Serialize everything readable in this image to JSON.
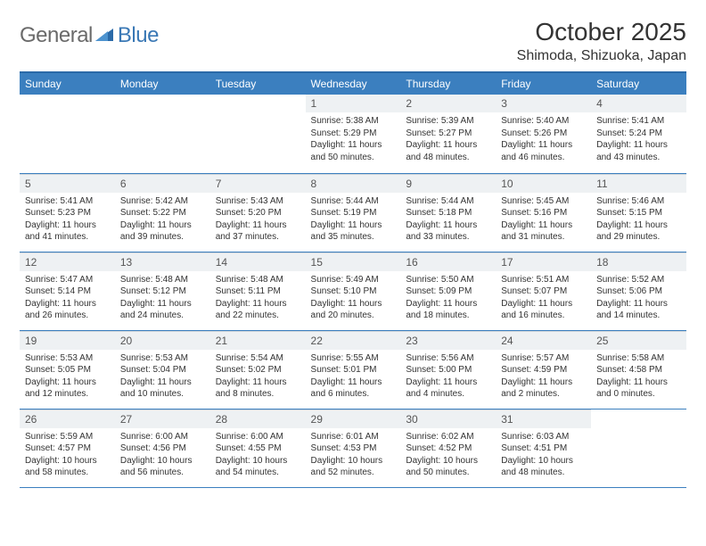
{
  "header": {
    "logo_general": "General",
    "logo_blue": "Blue",
    "month_title": "October 2025",
    "location": "Shimoda, Shizuoka, Japan"
  },
  "colors": {
    "header_bg": "#3b7fbf",
    "header_border": "#2b6aa8",
    "daynum_bg": "#eef1f3",
    "row_border": "#3b7fbf",
    "logo_gray": "#6a6a6a",
    "logo_blue": "#3a78b5"
  },
  "day_labels": [
    "Sunday",
    "Monday",
    "Tuesday",
    "Wednesday",
    "Thursday",
    "Friday",
    "Saturday"
  ],
  "weeks": [
    [
      {
        "empty": true
      },
      {
        "empty": true
      },
      {
        "empty": true
      },
      {
        "num": "1",
        "sunrise": "Sunrise: 5:38 AM",
        "sunset": "Sunset: 5:29 PM",
        "day1": "Daylight: 11 hours",
        "day2": "and 50 minutes."
      },
      {
        "num": "2",
        "sunrise": "Sunrise: 5:39 AM",
        "sunset": "Sunset: 5:27 PM",
        "day1": "Daylight: 11 hours",
        "day2": "and 48 minutes."
      },
      {
        "num": "3",
        "sunrise": "Sunrise: 5:40 AM",
        "sunset": "Sunset: 5:26 PM",
        "day1": "Daylight: 11 hours",
        "day2": "and 46 minutes."
      },
      {
        "num": "4",
        "sunrise": "Sunrise: 5:41 AM",
        "sunset": "Sunset: 5:24 PM",
        "day1": "Daylight: 11 hours",
        "day2": "and 43 minutes."
      }
    ],
    [
      {
        "num": "5",
        "sunrise": "Sunrise: 5:41 AM",
        "sunset": "Sunset: 5:23 PM",
        "day1": "Daylight: 11 hours",
        "day2": "and 41 minutes."
      },
      {
        "num": "6",
        "sunrise": "Sunrise: 5:42 AM",
        "sunset": "Sunset: 5:22 PM",
        "day1": "Daylight: 11 hours",
        "day2": "and 39 minutes."
      },
      {
        "num": "7",
        "sunrise": "Sunrise: 5:43 AM",
        "sunset": "Sunset: 5:20 PM",
        "day1": "Daylight: 11 hours",
        "day2": "and 37 minutes."
      },
      {
        "num": "8",
        "sunrise": "Sunrise: 5:44 AM",
        "sunset": "Sunset: 5:19 PM",
        "day1": "Daylight: 11 hours",
        "day2": "and 35 minutes."
      },
      {
        "num": "9",
        "sunrise": "Sunrise: 5:44 AM",
        "sunset": "Sunset: 5:18 PM",
        "day1": "Daylight: 11 hours",
        "day2": "and 33 minutes."
      },
      {
        "num": "10",
        "sunrise": "Sunrise: 5:45 AM",
        "sunset": "Sunset: 5:16 PM",
        "day1": "Daylight: 11 hours",
        "day2": "and 31 minutes."
      },
      {
        "num": "11",
        "sunrise": "Sunrise: 5:46 AM",
        "sunset": "Sunset: 5:15 PM",
        "day1": "Daylight: 11 hours",
        "day2": "and 29 minutes."
      }
    ],
    [
      {
        "num": "12",
        "sunrise": "Sunrise: 5:47 AM",
        "sunset": "Sunset: 5:14 PM",
        "day1": "Daylight: 11 hours",
        "day2": "and 26 minutes."
      },
      {
        "num": "13",
        "sunrise": "Sunrise: 5:48 AM",
        "sunset": "Sunset: 5:12 PM",
        "day1": "Daylight: 11 hours",
        "day2": "and 24 minutes."
      },
      {
        "num": "14",
        "sunrise": "Sunrise: 5:48 AM",
        "sunset": "Sunset: 5:11 PM",
        "day1": "Daylight: 11 hours",
        "day2": "and 22 minutes."
      },
      {
        "num": "15",
        "sunrise": "Sunrise: 5:49 AM",
        "sunset": "Sunset: 5:10 PM",
        "day1": "Daylight: 11 hours",
        "day2": "and 20 minutes."
      },
      {
        "num": "16",
        "sunrise": "Sunrise: 5:50 AM",
        "sunset": "Sunset: 5:09 PM",
        "day1": "Daylight: 11 hours",
        "day2": "and 18 minutes."
      },
      {
        "num": "17",
        "sunrise": "Sunrise: 5:51 AM",
        "sunset": "Sunset: 5:07 PM",
        "day1": "Daylight: 11 hours",
        "day2": "and 16 minutes."
      },
      {
        "num": "18",
        "sunrise": "Sunrise: 5:52 AM",
        "sunset": "Sunset: 5:06 PM",
        "day1": "Daylight: 11 hours",
        "day2": "and 14 minutes."
      }
    ],
    [
      {
        "num": "19",
        "sunrise": "Sunrise: 5:53 AM",
        "sunset": "Sunset: 5:05 PM",
        "day1": "Daylight: 11 hours",
        "day2": "and 12 minutes."
      },
      {
        "num": "20",
        "sunrise": "Sunrise: 5:53 AM",
        "sunset": "Sunset: 5:04 PM",
        "day1": "Daylight: 11 hours",
        "day2": "and 10 minutes."
      },
      {
        "num": "21",
        "sunrise": "Sunrise: 5:54 AM",
        "sunset": "Sunset: 5:02 PM",
        "day1": "Daylight: 11 hours",
        "day2": "and 8 minutes."
      },
      {
        "num": "22",
        "sunrise": "Sunrise: 5:55 AM",
        "sunset": "Sunset: 5:01 PM",
        "day1": "Daylight: 11 hours",
        "day2": "and 6 minutes."
      },
      {
        "num": "23",
        "sunrise": "Sunrise: 5:56 AM",
        "sunset": "Sunset: 5:00 PM",
        "day1": "Daylight: 11 hours",
        "day2": "and 4 minutes."
      },
      {
        "num": "24",
        "sunrise": "Sunrise: 5:57 AM",
        "sunset": "Sunset: 4:59 PM",
        "day1": "Daylight: 11 hours",
        "day2": "and 2 minutes."
      },
      {
        "num": "25",
        "sunrise": "Sunrise: 5:58 AM",
        "sunset": "Sunset: 4:58 PM",
        "day1": "Daylight: 11 hours",
        "day2": "and 0 minutes."
      }
    ],
    [
      {
        "num": "26",
        "sunrise": "Sunrise: 5:59 AM",
        "sunset": "Sunset: 4:57 PM",
        "day1": "Daylight: 10 hours",
        "day2": "and 58 minutes."
      },
      {
        "num": "27",
        "sunrise": "Sunrise: 6:00 AM",
        "sunset": "Sunset: 4:56 PM",
        "day1": "Daylight: 10 hours",
        "day2": "and 56 minutes."
      },
      {
        "num": "28",
        "sunrise": "Sunrise: 6:00 AM",
        "sunset": "Sunset: 4:55 PM",
        "day1": "Daylight: 10 hours",
        "day2": "and 54 minutes."
      },
      {
        "num": "29",
        "sunrise": "Sunrise: 6:01 AM",
        "sunset": "Sunset: 4:53 PM",
        "day1": "Daylight: 10 hours",
        "day2": "and 52 minutes."
      },
      {
        "num": "30",
        "sunrise": "Sunrise: 6:02 AM",
        "sunset": "Sunset: 4:52 PM",
        "day1": "Daylight: 10 hours",
        "day2": "and 50 minutes."
      },
      {
        "num": "31",
        "sunrise": "Sunrise: 6:03 AM",
        "sunset": "Sunset: 4:51 PM",
        "day1": "Daylight: 10 hours",
        "day2": "and 48 minutes."
      },
      {
        "empty": true
      }
    ]
  ]
}
